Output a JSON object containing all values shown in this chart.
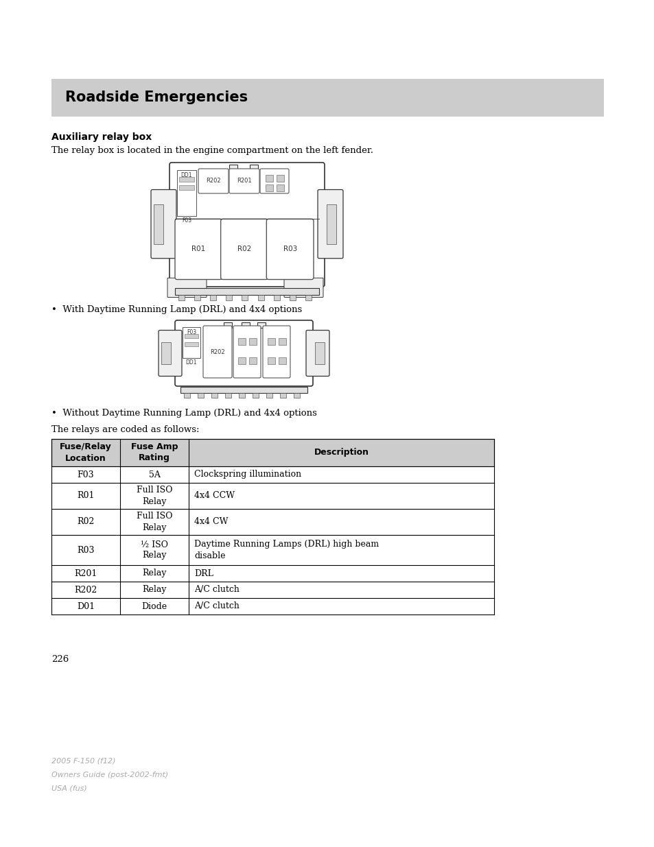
{
  "bg_color": "#ffffff",
  "header_bg": "#cccccc",
  "header_text": "Roadside Emergencies",
  "header_text_color": "#000000",
  "section_title": "Auxiliary relay box",
  "section_body": "The relay box is located in the engine compartment on the left fender.",
  "bullet1": "•  With Daytime Running Lamp (DRL) and 4x4 options",
  "bullet2": "•  Without Daytime Running Lamp (DRL) and 4x4 options",
  "table_intro": "The relays are coded as follows:",
  "table_headers": [
    "Fuse/Relay\nLocation",
    "Fuse Amp\nRating",
    "Description"
  ],
  "table_rows": [
    [
      "F03",
      "5A",
      "Clockspring illumination"
    ],
    [
      "R01",
      "Full ISO\nRelay",
      "4x4 CCW"
    ],
    [
      "R02",
      "Full ISO\nRelay",
      "4x4 CW"
    ],
    [
      "R03",
      "½ ISO\nRelay",
      "Daytime Running Lamps (DRL) high beam\ndisable"
    ],
    [
      "R201",
      "Relay",
      "DRL"
    ],
    [
      "R202",
      "Relay",
      "A/C clutch"
    ],
    [
      "D01",
      "Diode",
      "A/C clutch"
    ]
  ],
  "page_number": "226",
  "footer_line1": "2005 F-150 (f12)",
  "footer_line2": "Owners Guide (post-2002-fmt)",
  "footer_line3": "USA (fus)",
  "footer_color": "#aaaaaa",
  "table_header_bg": "#cccccc",
  "table_border_color": "#000000",
  "text_color": "#000000",
  "body_fontsize": 9.5,
  "header_fontsize": 15,
  "section_title_fontsize": 10
}
